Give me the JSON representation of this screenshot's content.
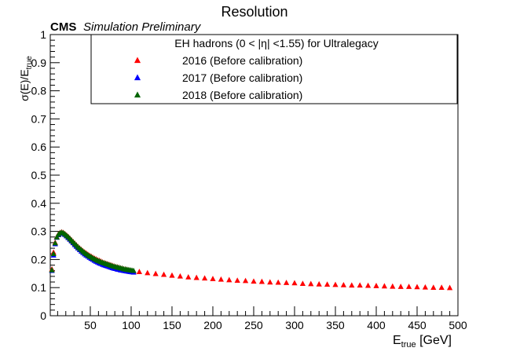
{
  "chart_data": {
    "type": "scatter",
    "title": "Resolution",
    "header": {
      "experiment": "CMS",
      "status": "Simulation Preliminary"
    },
    "xlabel": {
      "main": "E",
      "sub": "true",
      "unit": " [GeV]"
    },
    "ylabel": {
      "main": "σ(E)/E",
      "sub": "true"
    },
    "xlim": [
      1,
      500
    ],
    "ylim": [
      0,
      1
    ],
    "x_ticks": [
      50,
      100,
      150,
      200,
      250,
      300,
      350,
      400,
      450,
      500
    ],
    "x_tick_labels": [
      "50",
      "100",
      "150",
      "200",
      "250",
      "300",
      "350",
      "400",
      "450",
      "500"
    ],
    "y_ticks": [
      0,
      0.1,
      0.2,
      0.3,
      0.4,
      0.5,
      0.6,
      0.7,
      0.8,
      0.9,
      1
    ],
    "y_tick_labels": [
      "0",
      "0.1",
      "0.2",
      "0.3",
      "0.4",
      "0.5",
      "0.6",
      "0.7",
      "0.8",
      "0.9",
      "1"
    ],
    "grid": false,
    "legend": {
      "position": "top-right",
      "title": "EH hadrons (0 < |η| <1.55) for Ultralegacy"
    },
    "marker": "triangle-up",
    "series": [
      {
        "name": "2016 (Before calibration)",
        "color": "#ff0000",
        "x": [
          3,
          5,
          7,
          9,
          11,
          13,
          15,
          17,
          19,
          21,
          23,
          25,
          27,
          29,
          31,
          33,
          35,
          37,
          39,
          41,
          43,
          45,
          47,
          49,
          51,
          53,
          55,
          57,
          59,
          61,
          63,
          65,
          67,
          69,
          71,
          73,
          75,
          77,
          79,
          81,
          83,
          85,
          87,
          89,
          91,
          93,
          95,
          97,
          99,
          101,
          103,
          110,
          120,
          130,
          140,
          150,
          160,
          170,
          180,
          190,
          200,
          210,
          220,
          230,
          240,
          250,
          260,
          270,
          280,
          290,
          300,
          310,
          320,
          330,
          340,
          350,
          360,
          370,
          380,
          390,
          400,
          410,
          420,
          430,
          440,
          450,
          460,
          470,
          480,
          490
        ],
        "y": [
          0.165,
          0.225,
          0.26,
          0.28,
          0.29,
          0.295,
          0.297,
          0.295,
          0.291,
          0.286,
          0.281,
          0.275,
          0.269,
          0.263,
          0.257,
          0.251,
          0.245,
          0.24,
          0.235,
          0.23,
          0.226,
          0.222,
          0.218,
          0.214,
          0.211,
          0.207,
          0.204,
          0.201,
          0.198,
          0.196,
          0.193,
          0.19,
          0.188,
          0.186,
          0.184,
          0.182,
          0.18,
          0.178,
          0.176,
          0.174,
          0.173,
          0.171,
          0.169,
          0.168,
          0.166,
          0.165,
          0.164,
          0.162,
          0.161,
          0.16,
          0.158,
          0.156,
          0.152,
          0.149,
          0.146,
          0.143,
          0.14,
          0.137,
          0.135,
          0.133,
          0.131,
          0.129,
          0.127,
          0.125,
          0.124,
          0.122,
          0.121,
          0.119,
          0.118,
          0.117,
          0.116,
          0.114,
          0.113,
          0.112,
          0.111,
          0.11,
          0.109,
          0.108,
          0.108,
          0.107,
          0.106,
          0.105,
          0.104,
          0.103,
          0.103,
          0.102,
          0.101,
          0.1,
          0.1,
          0.099
        ]
      },
      {
        "name": "2017 (Before calibration)",
        "color": "#0000ff",
        "x": [
          3,
          5,
          7,
          9,
          11,
          13,
          15,
          17,
          19,
          21,
          23,
          25,
          27,
          29,
          31,
          33,
          35,
          37,
          39,
          41,
          43,
          45,
          47,
          49,
          51,
          53,
          55,
          57,
          59,
          61,
          63,
          65,
          67,
          69,
          71,
          73,
          75,
          77,
          79,
          81,
          83,
          85,
          87,
          89,
          91,
          93,
          95,
          97,
          99,
          101,
          103
        ],
        "y": [
          0.16,
          0.215,
          0.255,
          0.278,
          0.287,
          0.292,
          0.294,
          0.292,
          0.288,
          0.283,
          0.277,
          0.271,
          0.265,
          0.259,
          0.252,
          0.246,
          0.24,
          0.234,
          0.229,
          0.224,
          0.219,
          0.215,
          0.211,
          0.207,
          0.203,
          0.2,
          0.196,
          0.193,
          0.19,
          0.187,
          0.185,
          0.182,
          0.18,
          0.178,
          0.176,
          0.174,
          0.172,
          0.17,
          0.168,
          0.167,
          0.165,
          0.164,
          0.162,
          0.161,
          0.16,
          0.159,
          0.158,
          0.157,
          0.156,
          0.155,
          0.154
        ]
      },
      {
        "name": "2018 (Before calibration)",
        "color": "#006400",
        "x": [
          3,
          5,
          7,
          9,
          11,
          13,
          15,
          17,
          19,
          21,
          23,
          25,
          27,
          29,
          31,
          33,
          35,
          37,
          39,
          41,
          43,
          45,
          47,
          49,
          51,
          53,
          55,
          57,
          59,
          61,
          63,
          65,
          67,
          69,
          71,
          73,
          75,
          77,
          79,
          81,
          83,
          85,
          87,
          89,
          91,
          93,
          95,
          97,
          99,
          101,
          103
        ],
        "y": [
          0.162,
          0.22,
          0.258,
          0.279,
          0.289,
          0.294,
          0.296,
          0.294,
          0.29,
          0.285,
          0.28,
          0.274,
          0.268,
          0.262,
          0.256,
          0.25,
          0.244,
          0.239,
          0.234,
          0.229,
          0.224,
          0.22,
          0.216,
          0.212,
          0.209,
          0.205,
          0.202,
          0.199,
          0.196,
          0.194,
          0.191,
          0.189,
          0.187,
          0.185,
          0.183,
          0.181,
          0.179,
          0.177,
          0.175,
          0.174,
          0.172,
          0.171,
          0.169,
          0.168,
          0.166,
          0.165,
          0.164,
          0.163,
          0.162,
          0.161,
          0.16
        ]
      }
    ]
  }
}
